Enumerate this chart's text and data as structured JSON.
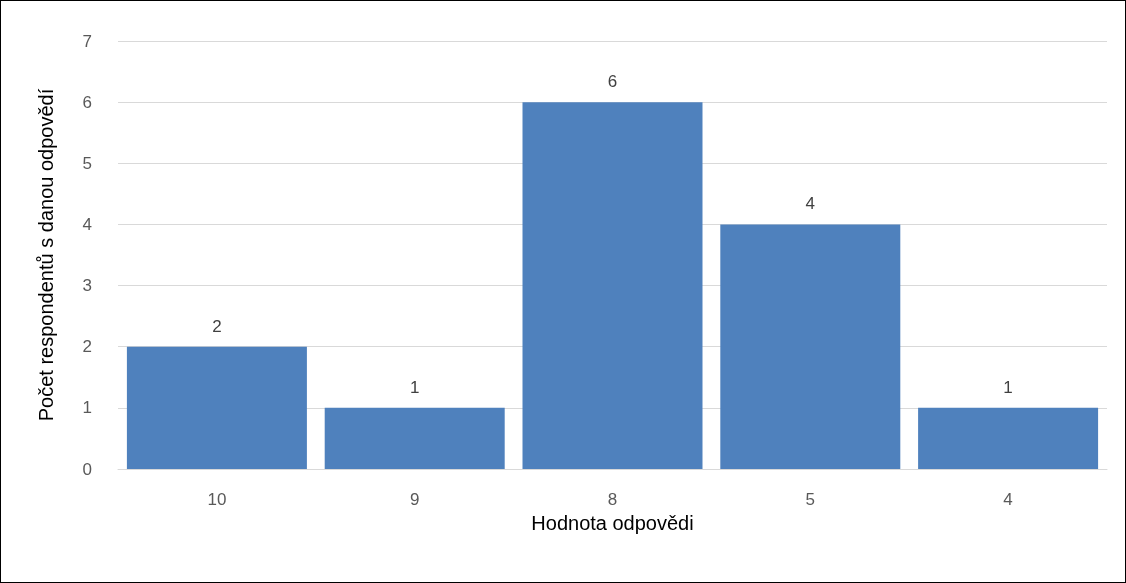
{
  "chart_data": {
    "type": "bar",
    "xlabel": "Hodnota odpovědi",
    "ylabel": "Počet respondentů s danou odpovědí",
    "categories": [
      "10",
      "9",
      "8",
      "5",
      "4"
    ],
    "values": [
      2,
      1,
      6,
      4,
      1
    ],
    "color": "#4f81bd",
    "ylim": [
      0,
      7
    ],
    "yticks": [
      0,
      1,
      2,
      3,
      4,
      5,
      6,
      7
    ],
    "grid": "y",
    "data_labels": true
  }
}
